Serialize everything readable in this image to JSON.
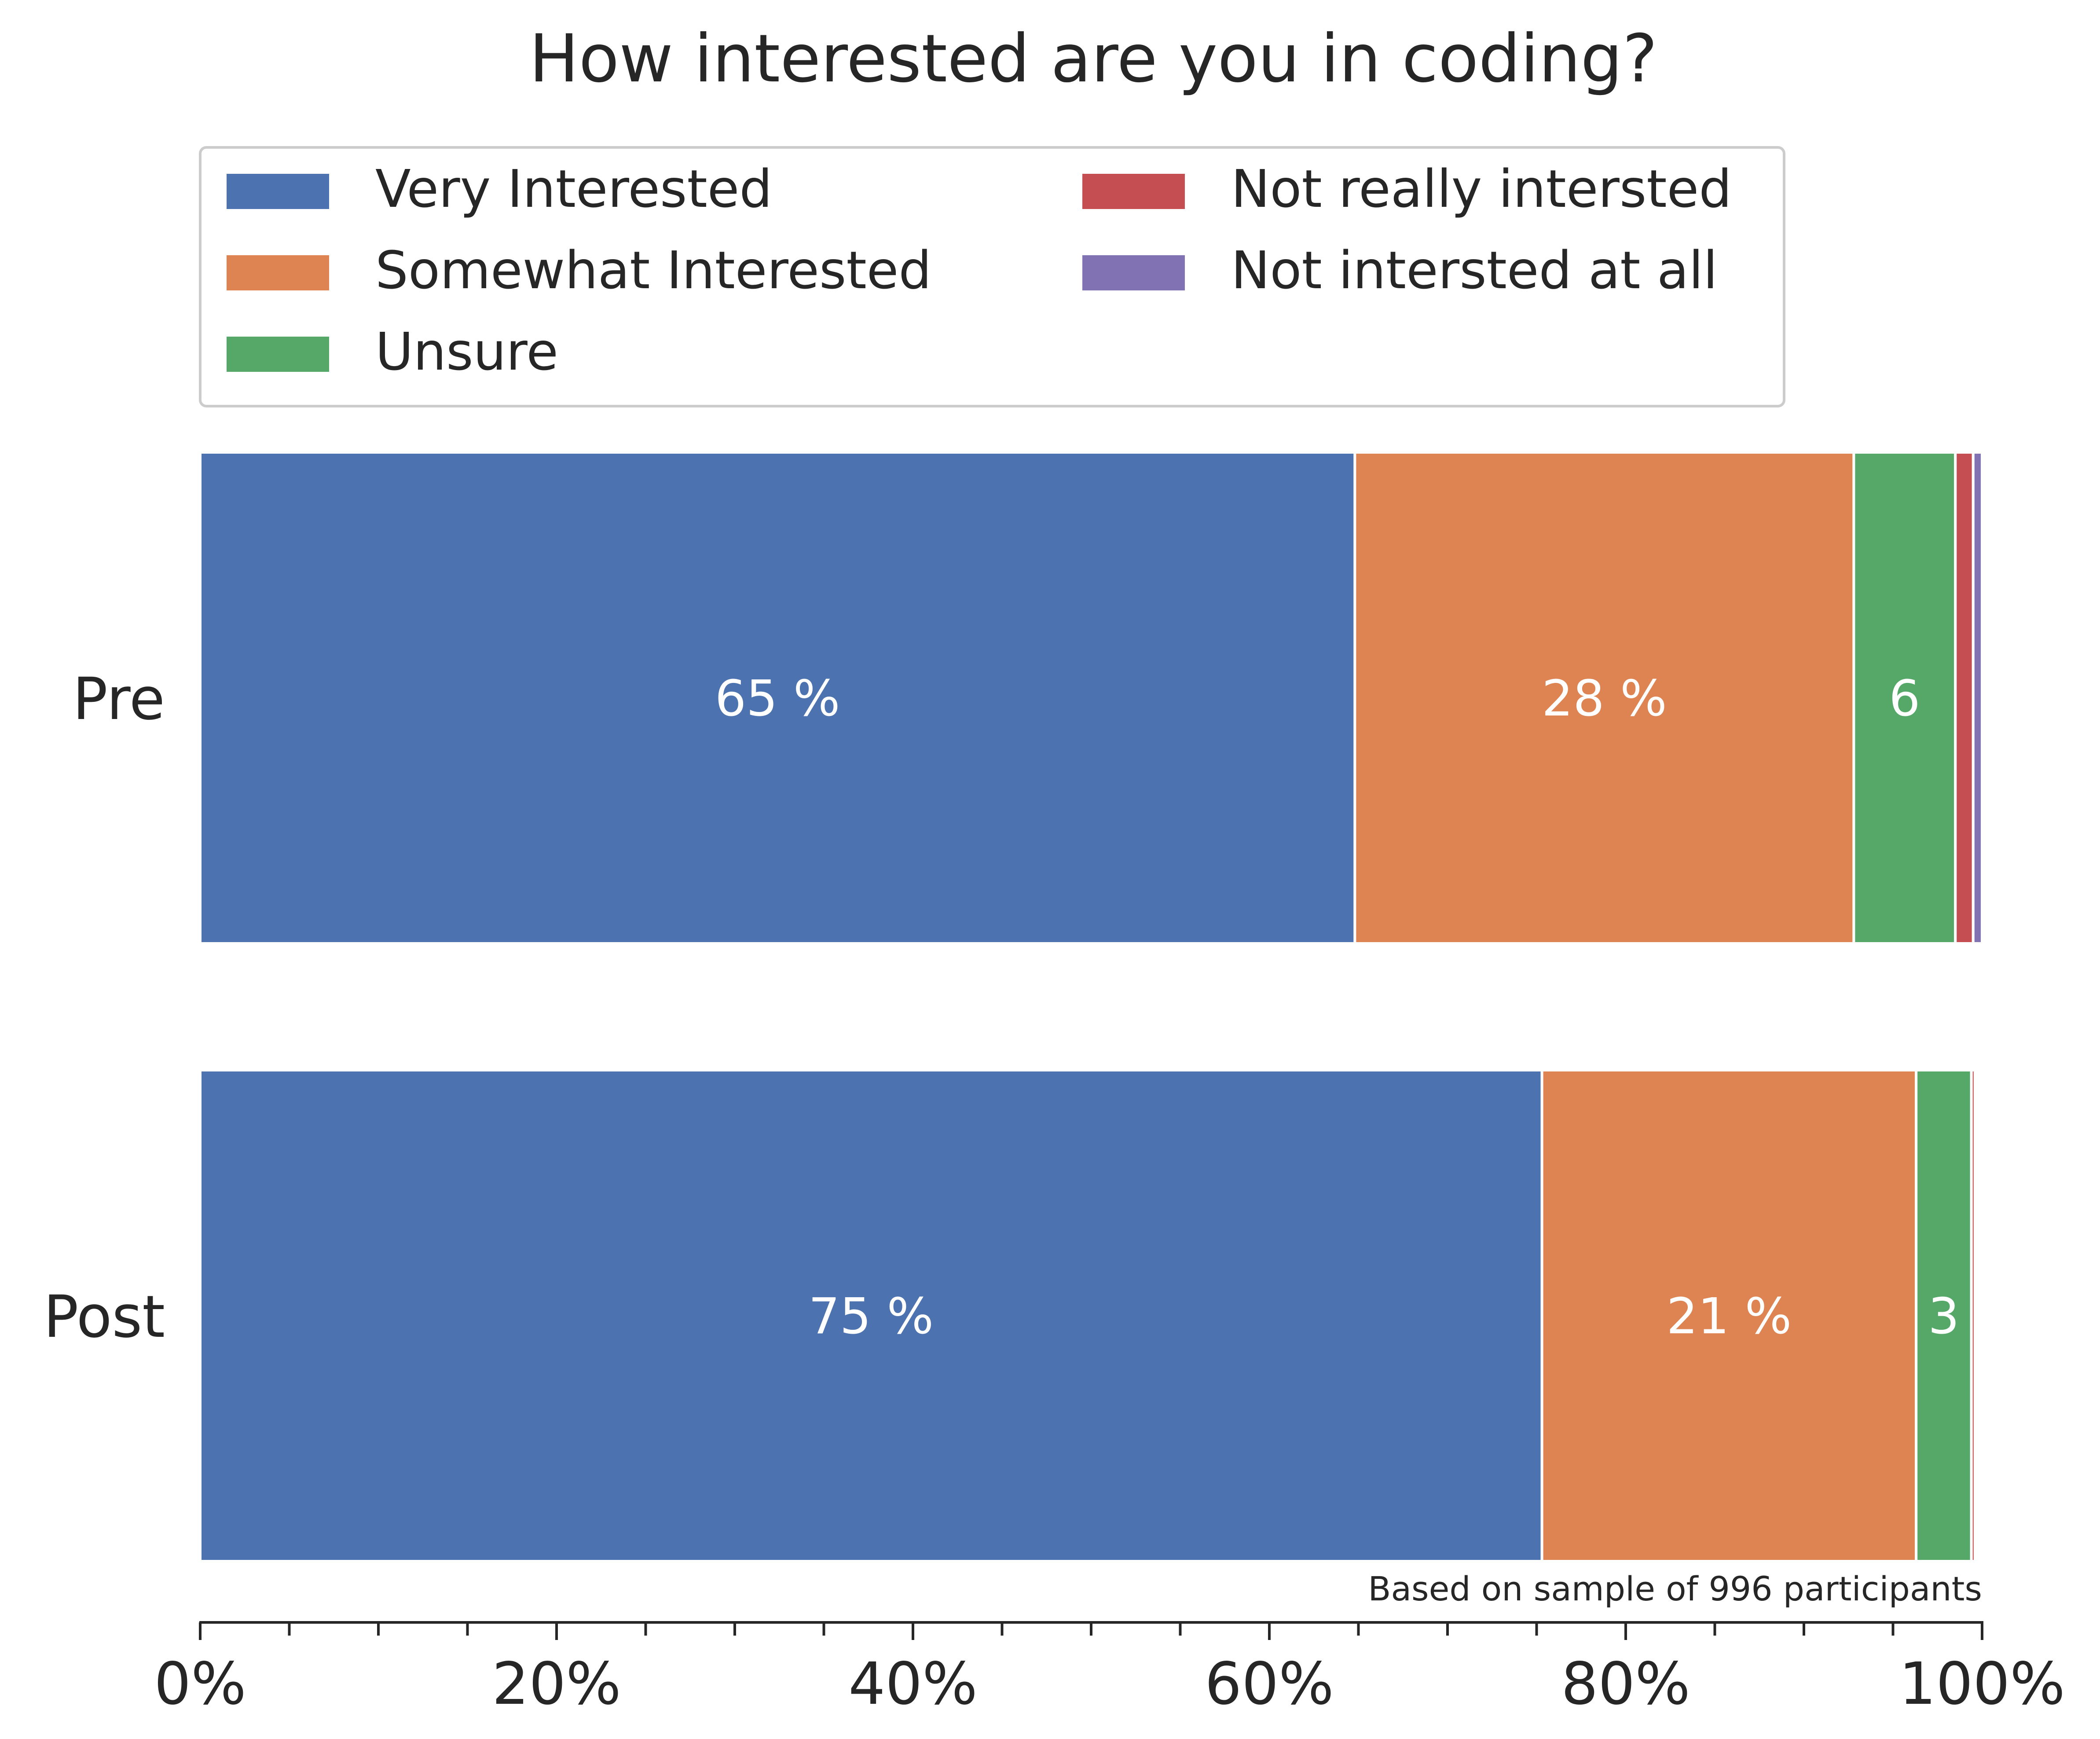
{
  "chart_data": {
    "type": "bar",
    "orientation": "horizontal",
    "stacked": true,
    "title": "How interested are you in coding?",
    "categories": [
      "Pre",
      "Post"
    ],
    "series": [
      {
        "name": "Very Interested",
        "color": "#4c72b0",
        "values": [
          64.8,
          75.3
        ]
      },
      {
        "name": "Somewhat Interested",
        "color": "#dd8452",
        "values": [
          28.0,
          21.0
        ]
      },
      {
        "name": "Unsure",
        "color": "#55a868",
        "values": [
          5.7,
          3.1
        ]
      },
      {
        "name": "Not really intersted",
        "color": "#c44e52",
        "values": [
          1.0,
          0.2
        ]
      },
      {
        "name": "Not intersted at all",
        "color": "#8172b3",
        "values": [
          0.5,
          0.0
        ]
      }
    ],
    "data_labels": [
      [
        "65 %",
        "28 %",
        "6",
        "",
        ""
      ],
      [
        "75 %",
        "21 %",
        "3",
        "",
        ""
      ]
    ],
    "xlim": [
      0,
      100
    ],
    "x_ticks": [
      "0%",
      "20%",
      "40%",
      "60%",
      "80%",
      "100%"
    ],
    "grid": false,
    "legend_position": "top",
    "note": "Based on sample of 996 participants"
  }
}
